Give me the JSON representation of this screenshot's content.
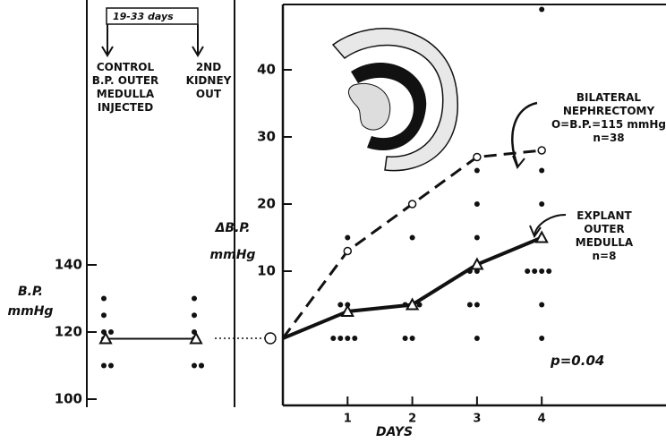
{
  "chart_data": [
    {
      "type": "scatter",
      "ylabel": "B.P.\nmmHg",
      "ylim": [
        97.6,
        217.6
      ],
      "yticks": [
        100,
        120,
        140
      ],
      "bracket": "19-33 days",
      "groups": [
        {
          "label": "CONTROL\nB.P. OUTER\nMEDULLA\nINJECTED",
          "values": [
            130,
            125,
            120,
            120,
            118,
            110,
            110
          ],
          "mean": 118
        },
        {
          "label": "2ND\nKIDNEY\nOUT",
          "values": [
            130,
            125,
            120,
            118,
            110,
            110,
            110
          ],
          "mean": 118
        }
      ]
    },
    {
      "type": "line",
      "xlabel": "DAYS",
      "ylabel": "ΔB.P.\nmmHg",
      "x": [
        0,
        1,
        2,
        3,
        4
      ],
      "xlim": [
        0,
        5.92
      ],
      "ylim": [
        -10,
        50
      ],
      "xticks": [
        1,
        2,
        3,
        4
      ],
      "yticks": [
        10,
        20,
        30,
        40
      ],
      "series": [
        {
          "label": "BILATERAL\nNEPHRECTOMY\nO=B.P.=115 mmHg\nn=38",
          "values": [
            0,
            13,
            20,
            27,
            28
          ],
          "dashed": true,
          "marker": "circle"
        },
        {
          "label": "EXPLANT\nOUTER\nMEDULLA\nn=8",
          "values": [
            0,
            4,
            5,
            11,
            15
          ],
          "dashed": false,
          "marker": "triangle"
        }
      ],
      "points": {
        "x": [
          1,
          1,
          1,
          1,
          1,
          1,
          1,
          2,
          2,
          2,
          2,
          2,
          2,
          3,
          3,
          3,
          3,
          3,
          3,
          3,
          3,
          4,
          4,
          4,
          4,
          4,
          4,
          4,
          4,
          4,
          4
        ],
        "y": [
          15,
          5,
          5,
          0,
          0,
          0,
          0,
          15,
          5,
          5,
          5,
          0,
          0,
          25,
          20,
          15,
          10,
          10,
          5,
          5,
          0,
          49,
          25,
          20,
          15,
          10,
          10,
          10,
          10,
          5,
          0
        ]
      },
      "annotation": "p=0.04"
    }
  ]
}
